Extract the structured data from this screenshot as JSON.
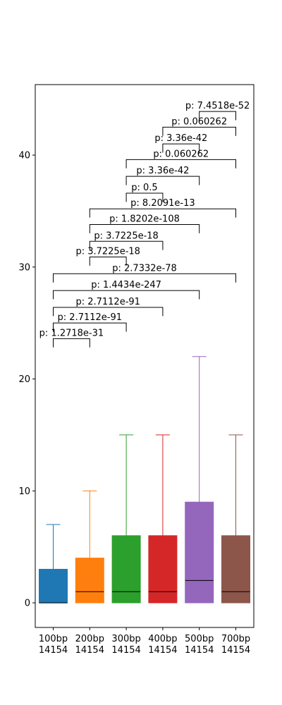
{
  "chart_data": {
    "type": "box",
    "title": "",
    "xlabel": "",
    "ylabel": "",
    "ylim": [
      -2.2,
      46.3
    ],
    "yticks": [
      0,
      10,
      20,
      30,
      40
    ],
    "categories": [
      "100bp",
      "200bp",
      "300bp",
      "400bp",
      "500bp",
      "700bp"
    ],
    "counts": [
      "14154",
      "14154",
      "14154",
      "14154",
      "14154",
      "14154"
    ],
    "colors": [
      "#1f77b4",
      "#ff7f0e",
      "#2ca02c",
      "#d62728",
      "#9467bd",
      "#8c564b"
    ],
    "boxes": [
      {
        "q1": 0,
        "median": 0,
        "q3": 3,
        "whisker_low": 0,
        "whisker_high": 7
      },
      {
        "q1": 0,
        "median": 1,
        "q3": 4,
        "whisker_low": 0,
        "whisker_high": 10
      },
      {
        "q1": 0,
        "median": 1,
        "q3": 6,
        "whisker_low": 0,
        "whisker_high": 15
      },
      {
        "q1": 0,
        "median": 1,
        "q3": 6,
        "whisker_low": 0,
        "whisker_high": 15
      },
      {
        "q1": 0,
        "median": 2,
        "q3": 9,
        "whisker_low": 0,
        "whisker_high": 22
      },
      {
        "q1": 0,
        "median": 1,
        "q3": 6,
        "whisker_low": 0,
        "whisker_high": 15
      }
    ],
    "comparisons": [
      {
        "a": 0,
        "b": 1,
        "y": 23.6,
        "label": "p: 1.2718e-31"
      },
      {
        "a": 0,
        "b": 2,
        "y": 25.0,
        "label": "p: 2.7112e-91"
      },
      {
        "a": 0,
        "b": 3,
        "y": 26.4,
        "label": "p: 2.7112e-91"
      },
      {
        "a": 0,
        "b": 4,
        "y": 27.9,
        "label": "p: 1.4434e-247"
      },
      {
        "a": 0,
        "b": 5,
        "y": 29.4,
        "label": "p: 2.7332e-78"
      },
      {
        "a": 1,
        "b": 2,
        "y": 30.9,
        "label": "p: 3.7225e-18"
      },
      {
        "a": 1,
        "b": 3,
        "y": 32.3,
        "label": "p: 3.7225e-18"
      },
      {
        "a": 1,
        "b": 4,
        "y": 33.8,
        "label": "p: 1.8202e-108"
      },
      {
        "a": 1,
        "b": 5,
        "y": 35.2,
        "label": "p: 8.2091e-13"
      },
      {
        "a": 2,
        "b": 3,
        "y": 36.6,
        "label": "p: 0.5"
      },
      {
        "a": 2,
        "b": 4,
        "y": 38.1,
        "label": "p: 3.36e-42"
      },
      {
        "a": 2,
        "b": 5,
        "y": 39.6,
        "label": "p: 0.060262"
      },
      {
        "a": 3,
        "b": 4,
        "y": 41.0,
        "label": "p: 3.36e-42"
      },
      {
        "a": 3,
        "b": 5,
        "y": 42.5,
        "label": "p: 0.060262"
      },
      {
        "a": 4,
        "b": 5,
        "y": 43.9,
        "label": "p: 7.4518e-52"
      }
    ]
  }
}
